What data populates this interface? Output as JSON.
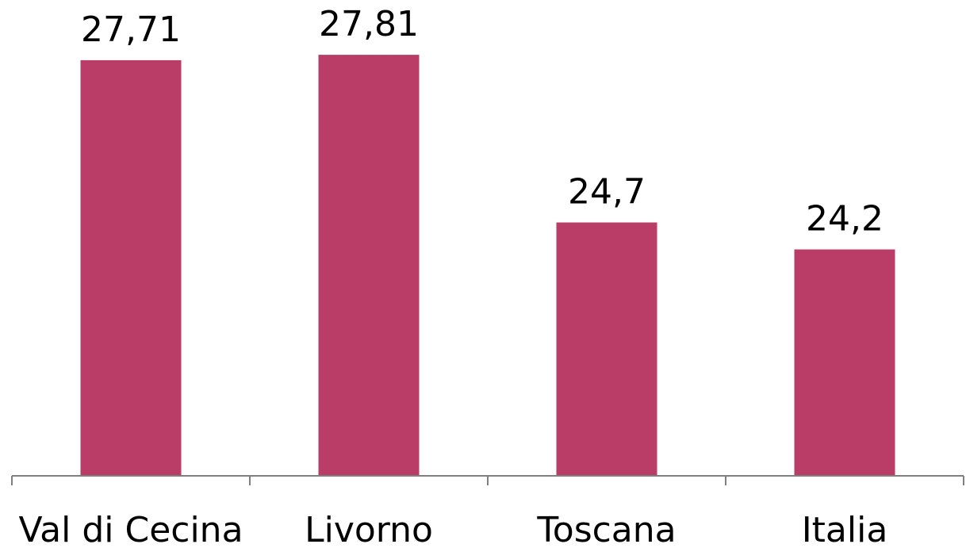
{
  "chart_data": {
    "type": "bar",
    "categories": [
      "Val di Cecina",
      "Livorno",
      "Toscana",
      "Italia"
    ],
    "values": [
      27.71,
      27.81,
      24.7,
      24.2
    ],
    "data_labels": [
      "27,71",
      "27,81",
      "24,7",
      "24,2"
    ],
    "title": "",
    "xlabel": "",
    "ylabel": "",
    "ylim": [
      20.0,
      28.4
    ],
    "grid": false,
    "legend": "none",
    "colors": {
      "bar": "#b93d66",
      "axis": "#7f7f7f",
      "text": "#000000"
    }
  }
}
